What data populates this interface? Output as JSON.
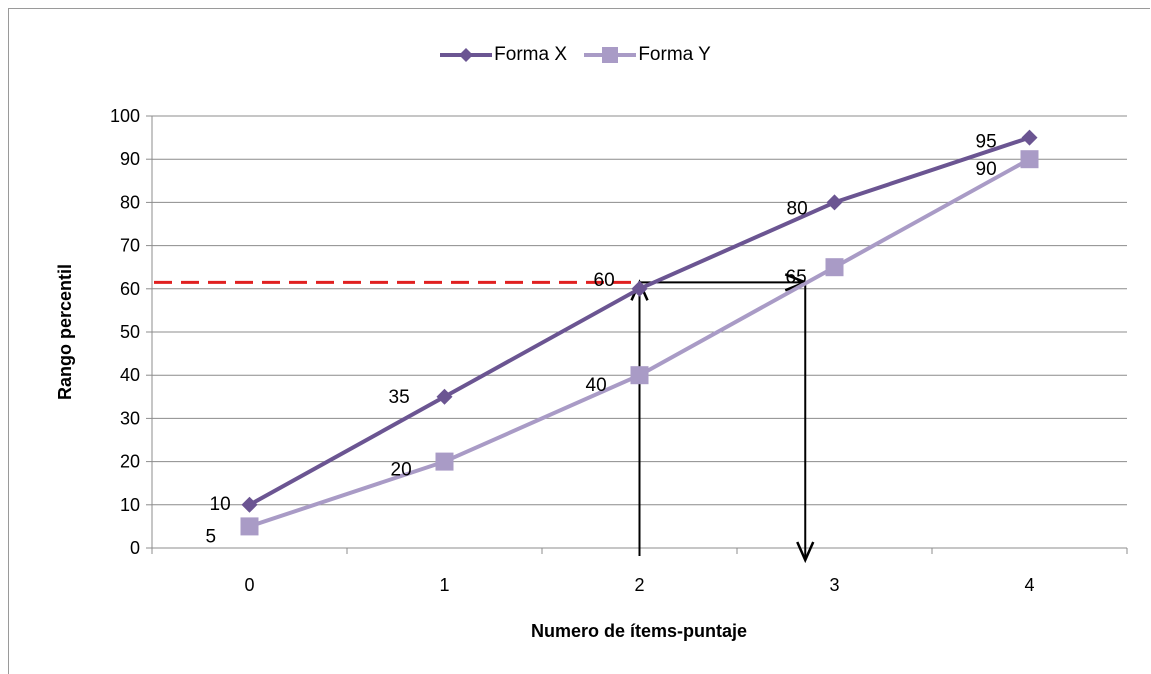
{
  "chart_data": {
    "type": "line",
    "title": "",
    "xlabel": "Numero de ítems-puntaje",
    "ylabel": "Rango percentil",
    "categories": [
      "0",
      "1",
      "2",
      "3",
      "4"
    ],
    "x": [
      0,
      1,
      2,
      3,
      4
    ],
    "ylim": [
      0,
      100
    ],
    "yticks": [
      0,
      10,
      20,
      30,
      40,
      50,
      60,
      70,
      80,
      90,
      100
    ],
    "grid": true,
    "legend_position": "top",
    "series": [
      {
        "name": "Forma X",
        "values": [
          10,
          35,
          60,
          80,
          95
        ],
        "labels": [
          "10",
          "35",
          "60",
          "80",
          "95"
        ],
        "color": "#6b5592",
        "marker": "diamond"
      },
      {
        "name": "Forma Y",
        "values": [
          5,
          20,
          40,
          65,
          90
        ],
        "labels": [
          "5",
          "20",
          "40",
          "65",
          "90"
        ],
        "color": "#a99bc6",
        "marker": "square"
      }
    ],
    "annotations": {
      "reference_line_y": 61.5,
      "reference_line_color": "#e02020",
      "arrow_color": "#000000",
      "arrow_up_x": 2,
      "arrow_right_to_x": 2.85,
      "arrow_down_x": 2.85
    }
  }
}
